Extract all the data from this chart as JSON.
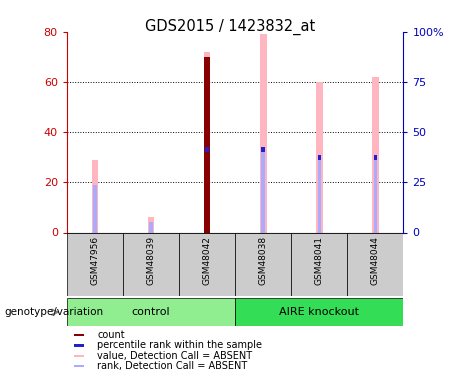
{
  "title": "GDS2015 / 1423832_at",
  "samples": [
    "GSM47956",
    "GSM48039",
    "GSM48042",
    "GSM48038",
    "GSM48041",
    "GSM48044"
  ],
  "groups": [
    {
      "label": "control",
      "n": 3,
      "color": "#90EE90"
    },
    {
      "label": "AIRE knockout",
      "n": 3,
      "color": "#33DD55"
    }
  ],
  "pink_bar_heights": [
    29,
    6,
    72,
    79,
    60,
    62
  ],
  "light_blue_bar_heights": [
    19,
    4,
    32,
    32,
    29,
    29
  ],
  "red_bar_heights": [
    0,
    0,
    70,
    0,
    0,
    0
  ],
  "dark_blue_heights": [
    0,
    0,
    33,
    33,
    30,
    30
  ],
  "has_red": [
    false,
    false,
    true,
    false,
    false,
    false
  ],
  "has_dark_blue": [
    false,
    false,
    true,
    true,
    true,
    true
  ],
  "ylim_left": [
    0,
    80
  ],
  "ylim_right": [
    0,
    100
  ],
  "yticks_left": [
    0,
    20,
    40,
    60,
    80
  ],
  "yticks_right": [
    0,
    25,
    50,
    75,
    100
  ],
  "ytick_labels_right": [
    "0",
    "25",
    "50",
    "75",
    "100%"
  ],
  "left_axis_color": "#CC0000",
  "right_axis_color": "#0000BB",
  "pink_color": "#FFB6C1",
  "light_blue_color": "#AAAAFF",
  "red_color": "#880000",
  "dark_blue_color": "#2222CC",
  "legend_items": [
    {
      "color": "#880000",
      "label": "count"
    },
    {
      "color": "#2222CC",
      "label": "percentile rank within the sample"
    },
    {
      "color": "#FFB6C1",
      "label": "value, Detection Call = ABSENT"
    },
    {
      "color": "#AAAAFF",
      "label": "rank, Detection Call = ABSENT"
    }
  ],
  "genotype_label": "genotype/variation",
  "grid_yticks": [
    20,
    40,
    60
  ]
}
